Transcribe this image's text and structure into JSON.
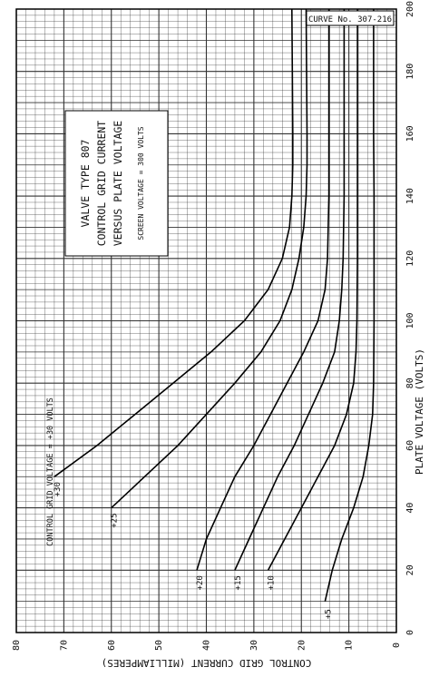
{
  "chart_data": {
    "type": "line",
    "curve_number": "CURVE No. 307-216",
    "title_lines": [
      "VALVE TYPE 807",
      "CONTROL GRID CURRENT",
      "VERSUS PLATE VOLTAGE"
    ],
    "subtitle": "SCREEN VOLTAGE = 300 VOLTS",
    "xlabel": "PLATE VOLTAGE (VOLTS)",
    "ylabel": "CONTROL GRID CURRENT (MILLIAMPERES)",
    "xlim": [
      0,
      200
    ],
    "ylim": [
      0,
      80
    ],
    "x_ticks": [
      "0",
      "20",
      "40",
      "60",
      "80",
      "100",
      "120",
      "140",
      "160",
      "180",
      "200"
    ],
    "y_ticks": [
      "0",
      "10",
      "20",
      "30",
      "40",
      "50",
      "60",
      "70",
      "80"
    ],
    "series_annotation": "CONTROL GRID VOLTAGE = +30 VOLTS",
    "series": [
      {
        "name": "+30",
        "points": [
          [
            50,
            72
          ],
          [
            60,
            63
          ],
          [
            70,
            55
          ],
          [
            80,
            47
          ],
          [
            90,
            39
          ],
          [
            100,
            32
          ],
          [
            110,
            27
          ],
          [
            120,
            24
          ],
          [
            130,
            22.5
          ],
          [
            140,
            22
          ],
          [
            150,
            21.8
          ],
          [
            160,
            21.8
          ],
          [
            180,
            21.9
          ],
          [
            200,
            22
          ]
        ]
      },
      {
        "name": "+25",
        "points": [
          [
            40,
            60
          ],
          [
            50,
            53
          ],
          [
            60,
            46
          ],
          [
            70,
            40
          ],
          [
            80,
            34
          ],
          [
            90,
            28.5
          ],
          [
            100,
            24.5
          ],
          [
            110,
            22
          ],
          [
            120,
            20.5
          ],
          [
            130,
            19.5
          ],
          [
            140,
            19
          ],
          [
            150,
            18.8
          ],
          [
            160,
            18.8
          ],
          [
            180,
            18.9
          ],
          [
            200,
            19
          ]
        ]
      },
      {
        "name": "+20",
        "points": [
          [
            20,
            42
          ],
          [
            30,
            40
          ],
          [
            40,
            37
          ],
          [
            50,
            34
          ],
          [
            60,
            30
          ],
          [
            70,
            26.5
          ],
          [
            80,
            23
          ],
          [
            90,
            19.5
          ],
          [
            100,
            16.5
          ],
          [
            110,
            15
          ],
          [
            120,
            14.5
          ],
          [
            140,
            14.2
          ],
          [
            160,
            14.2
          ],
          [
            180,
            14.2
          ],
          [
            200,
            14.2
          ]
        ]
      },
      {
        "name": "+15",
        "points": [
          [
            20,
            34
          ],
          [
            30,
            31
          ],
          [
            40,
            28
          ],
          [
            50,
            25
          ],
          [
            60,
            21.5
          ],
          [
            70,
            18.5
          ],
          [
            80,
            15.5
          ],
          [
            90,
            13
          ],
          [
            100,
            12
          ],
          [
            110,
            11.5
          ],
          [
            120,
            11.2
          ],
          [
            140,
            11
          ],
          [
            160,
            11
          ],
          [
            180,
            11
          ],
          [
            200,
            11
          ]
        ]
      },
      {
        "name": "+10",
        "points": [
          [
            20,
            27
          ],
          [
            30,
            23.5
          ],
          [
            40,
            20
          ],
          [
            50,
            16.5
          ],
          [
            60,
            13
          ],
          [
            70,
            10.5
          ],
          [
            80,
            9
          ],
          [
            90,
            8.5
          ],
          [
            100,
            8.3
          ],
          [
            120,
            8.2
          ],
          [
            140,
            8.2
          ],
          [
            160,
            8.2
          ],
          [
            180,
            8.2
          ],
          [
            200,
            8.2
          ]
        ]
      },
      {
        "name": "+5",
        "points": [
          [
            10,
            15
          ],
          [
            20,
            13.5
          ],
          [
            30,
            11.5
          ],
          [
            40,
            9
          ],
          [
            50,
            7
          ],
          [
            60,
            5.8
          ],
          [
            70,
            5
          ],
          [
            80,
            4.8
          ],
          [
            100,
            4.7
          ],
          [
            120,
            4.7
          ],
          [
            140,
            4.7
          ],
          [
            160,
            4.8
          ],
          [
            180,
            4.8
          ],
          [
            200,
            4.8
          ]
        ]
      }
    ]
  }
}
